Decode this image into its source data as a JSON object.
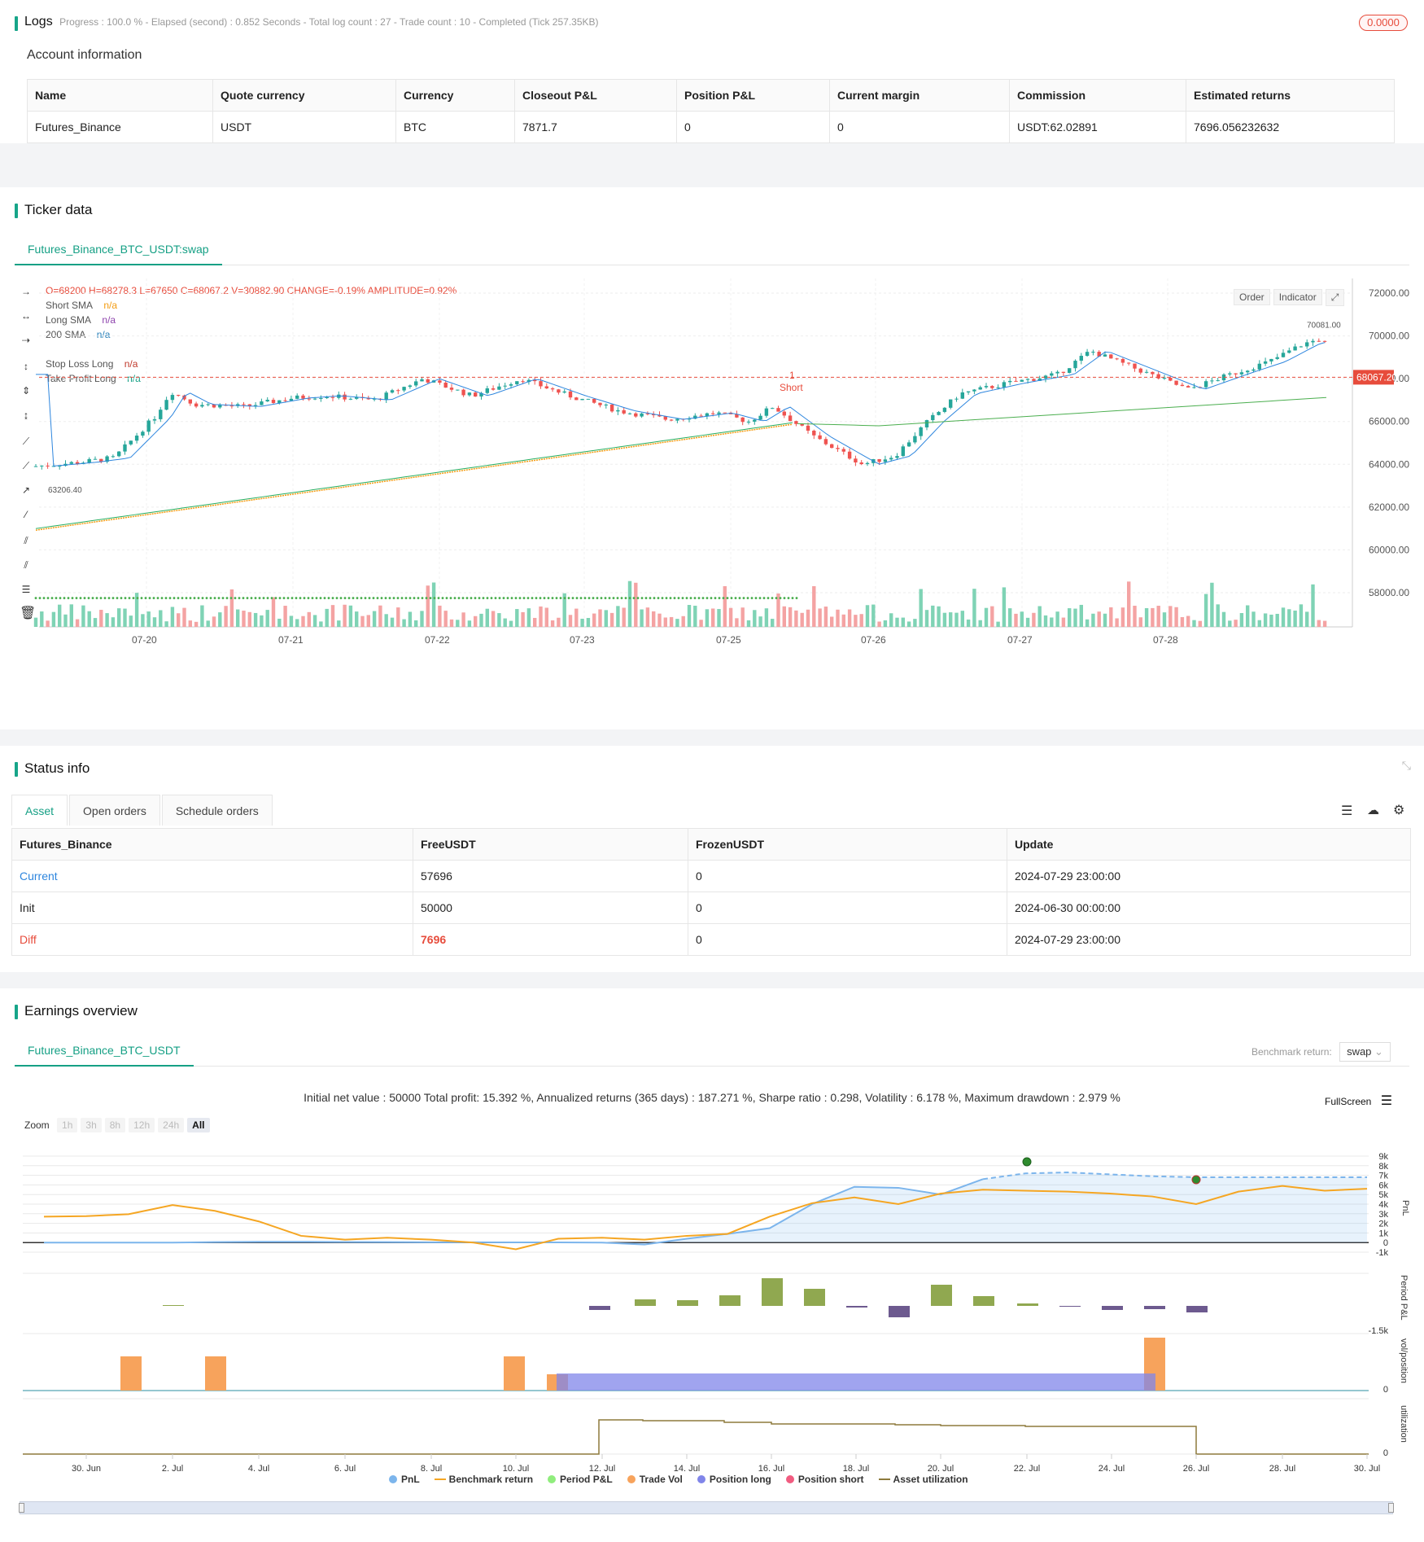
{
  "logs": {
    "title": "Logs",
    "progress": "Progress : 100.0 % - Elapsed (second) : 0.852   Seconds - Total log count : 27 - Trade count : 10 - Completed (Tick 257.35KB)",
    "badge": "0.0000"
  },
  "account": {
    "title": "Account information",
    "headers": [
      "Name",
      "Quote currency",
      "Currency",
      "Closeout P&L",
      "Position P&L",
      "Current margin",
      "Commission",
      "Estimated returns"
    ],
    "row": [
      "Futures_Binance",
      "USDT",
      "BTC",
      "7871.7",
      "0",
      "0",
      "USDT:62.02891",
      "7696.056232632"
    ]
  },
  "ticker": {
    "title": "Ticker data",
    "tab": "Futures_Binance_BTC_USDT:swap",
    "ohlc": "O=68200 H=68278.3 L=67650 C=68067.2 V=30882.90 CHANGE=-0.19% AMPLITUDE=0.92%",
    "legend": [
      {
        "name": "Short SMA",
        "value": "n/a",
        "color": "#f39c12"
      },
      {
        "name": "Long SMA",
        "value": "n/a",
        "color": "#8e44ad"
      },
      {
        "name": "200 SMA",
        "value": "n/a",
        "color": "#2980b9"
      },
      {
        "name": "Stop Loss Long",
        "value": "n/a",
        "color": "#c0392b"
      },
      {
        "name": "Take Profit Long",
        "value": "n/a",
        "color": "#16a085"
      }
    ],
    "buttons": [
      "Order",
      "Indicator"
    ],
    "price_labels": [
      "72000.00",
      "70000.00",
      "68000.00",
      "66000.00",
      "64000.00",
      "62000.00",
      "60000.00",
      "58000.00"
    ],
    "current_price": "68067.20",
    "high_marker": "70081.00",
    "low_marker": "63206.40",
    "short_marker": {
      "count": "1",
      "label": "Short"
    },
    "dates": [
      "07-20",
      "07-21",
      "07-22",
      "07-23",
      "07-25",
      "07-26",
      "07-27",
      "07-28"
    ]
  },
  "status": {
    "title": "Status info",
    "tabs": [
      "Asset",
      "Open orders",
      "Schedule orders"
    ],
    "headers": [
      "Futures_Binance",
      "FreeUSDT",
      "FrozenUSDT",
      "Update"
    ],
    "rows": [
      [
        "Current",
        "57696",
        "0",
        "2024-07-29 23:00:00"
      ],
      [
        "Init",
        "50000",
        "0",
        "2024-06-30 00:00:00"
      ],
      [
        "Diff",
        "7696",
        "0",
        "2024-07-29 23:00:00"
      ]
    ]
  },
  "earnings": {
    "title": "Earnings overview",
    "tab": "Futures_Binance_BTC_USDT",
    "benchmark_label": "Benchmark return:",
    "benchmark_value": "swap",
    "summary": "Initial net value : 50000 Total profit: 15.392 %, Annualized returns (365 days) : 187.271 %, Sharpe ratio : 0.298, Volatility : 6.178 %, Maximum drawdown : 2.979 %",
    "fullscreen": "FullScreen",
    "zoom_label": "Zoom",
    "zoom_options": [
      "1h",
      "3h",
      "8h",
      "12h",
      "24h",
      "All"
    ],
    "pnl_axis": [
      "9k",
      "8k",
      "7k",
      "6k",
      "5k",
      "4k",
      "3k",
      "2k",
      "1k",
      "0",
      "-1k"
    ],
    "period_axis": "-1.5k",
    "vol_axis": "0",
    "util_axis": "0",
    "axis_titles": [
      "PnL",
      "Period P&L",
      "vol/position",
      "utilization"
    ],
    "x_labels": [
      "30. Jun",
      "2. Jul",
      "4. Jul",
      "6. Jul",
      "8. Jul",
      "10. Jul",
      "12. Jul",
      "14. Jul",
      "16. Jul",
      "18. Jul",
      "20. Jul",
      "22. Jul",
      "24. Jul",
      "26. Jul",
      "28. Jul",
      "30. Jul"
    ],
    "legend": [
      {
        "name": "PnL",
        "color": "#7cb5ec"
      },
      {
        "name": "Benchmark return",
        "color": "#f5a623"
      },
      {
        "name": "Period P&L",
        "color": "#90ed7d"
      },
      {
        "name": "Trade Vol",
        "color": "#f7a35c"
      },
      {
        "name": "Position long",
        "color": "#8085e9"
      },
      {
        "name": "Position short",
        "color": "#f15c80"
      },
      {
        "name": "Asset utilization",
        "color": "#8d7a3c"
      }
    ]
  }
}
